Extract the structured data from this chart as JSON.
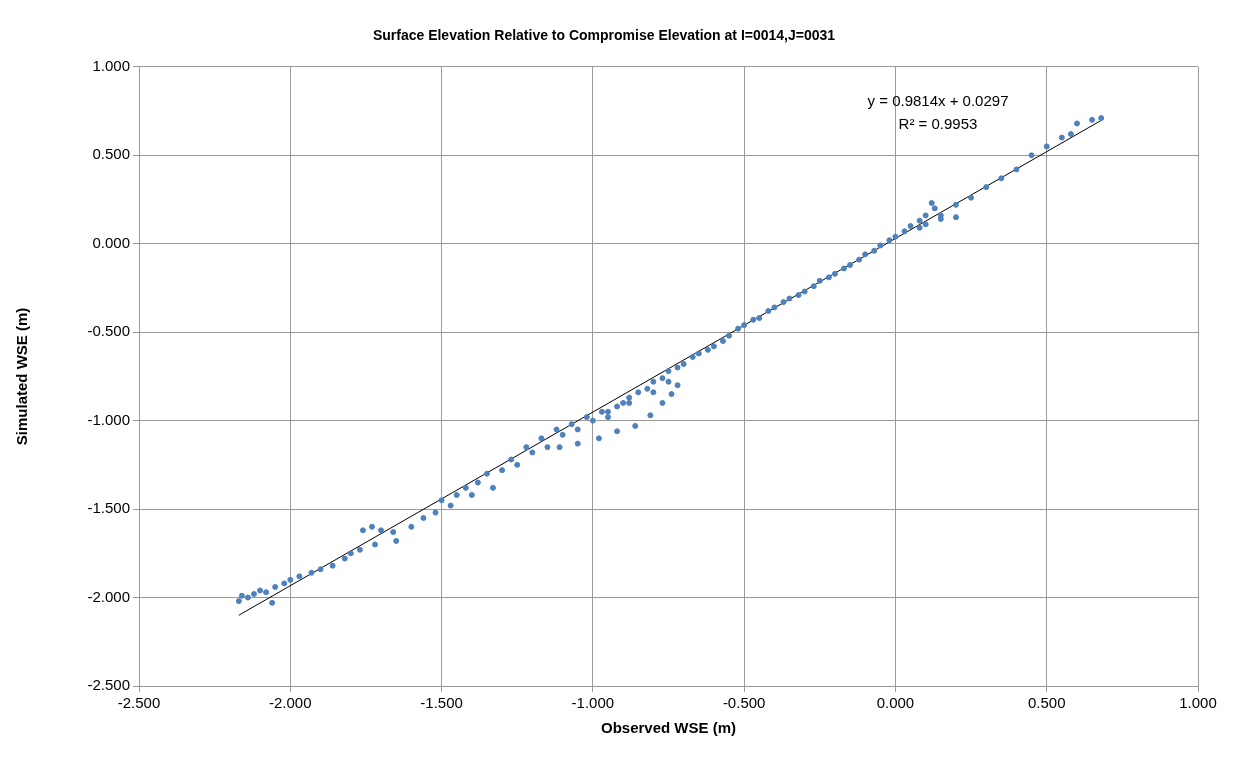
{
  "chart_data": {
    "type": "scatter",
    "title": "Surface Elevation Relative to Compromise Elevation at I=0014,J=0031",
    "xlabel": "Observed WSE (m)",
    "ylabel": "Simulated WSE (m)",
    "xlim": [
      -2.5,
      1.0
    ],
    "ylim": [
      -2.5,
      1.0
    ],
    "xticks": [
      {
        "value": -2.5,
        "label": "-2.500"
      },
      {
        "value": -2.0,
        "label": "-2.000"
      },
      {
        "value": -1.5,
        "label": "-1.500"
      },
      {
        "value": -1.0,
        "label": "-1.000"
      },
      {
        "value": -0.5,
        "label": "-0.500"
      },
      {
        "value": 0,
        "label": "0.000"
      },
      {
        "value": 0.5,
        "label": "0.500"
      },
      {
        "value": 1.0,
        "label": "1.000"
      }
    ],
    "yticks": [
      {
        "value": -2.5,
        "label": "-2.500"
      },
      {
        "value": -2.0,
        "label": "-2.000"
      },
      {
        "value": -1.5,
        "label": "-1.500"
      },
      {
        "value": -1.0,
        "label": "-1.000"
      },
      {
        "value": -0.5,
        "label": "-0.500"
      },
      {
        "value": 0,
        "label": "0.000"
      },
      {
        "value": 0.5,
        "label": "0.500"
      },
      {
        "value": 1.0,
        "label": "1.000"
      }
    ],
    "grid": true,
    "marker": "circle",
    "annotations": [
      "y = 0.9814x + 0.0297",
      "R² = 0.9953"
    ],
    "series": [
      {
        "color": "#4f81bd",
        "x": [
          -2.17,
          -2.16,
          -2.14,
          -2.12,
          -2.1,
          -2.08,
          -2.06,
          -2.05,
          -2.02,
          -2.0,
          -1.97,
          -1.93,
          -1.9,
          -1.86,
          -1.82,
          -1.8,
          -1.77,
          -1.76,
          -1.73,
          -1.7,
          -1.66,
          -1.72,
          -1.65,
          -1.6,
          -1.56,
          -1.52,
          -1.5,
          -1.47,
          -1.45,
          -1.42,
          -1.4,
          -1.38,
          -1.35,
          -1.33,
          -1.3,
          -1.27,
          -1.25,
          -1.22,
          -1.2,
          -1.17,
          -1.15,
          -1.12,
          -1.1,
          -1.07,
          -1.05,
          -1.02,
          -1.0,
          -0.97,
          -0.95,
          -0.92,
          -0.9,
          -0.88,
          -0.85,
          -0.82,
          -0.8,
          -0.77,
          -0.75,
          -0.72,
          -0.7,
          -0.67,
          -0.65,
          -0.62,
          -0.6,
          -0.57,
          -0.55,
          -0.52,
          -0.5,
          -0.47,
          -0.45,
          -0.42,
          -0.4,
          -0.37,
          -0.35,
          -0.32,
          -0.3,
          -0.27,
          -0.25,
          -0.22,
          -0.2,
          -0.17,
          -0.15,
          -0.12,
          -0.1,
          -0.07,
          -0.05,
          -0.02,
          0.0,
          0.03,
          0.05,
          0.08,
          0.1,
          0.13,
          0.12,
          0.08,
          0.15,
          0.2,
          0.2,
          0.25,
          0.3,
          0.35,
          0.4,
          0.45,
          0.5,
          0.55,
          0.58,
          0.6,
          0.65,
          0.68,
          -0.72,
          -0.74,
          -0.77,
          -0.81,
          -0.86,
          -0.92,
          -0.98,
          -1.05,
          -1.11,
          -0.75,
          -0.8,
          -0.88,
          -0.95,
          0.1,
          0.15
        ],
        "values": [
          -2.02,
          -1.99,
          -2.0,
          -1.98,
          -1.96,
          -1.97,
          -2.03,
          -1.94,
          -1.92,
          -1.9,
          -1.88,
          -1.86,
          -1.84,
          -1.82,
          -1.78,
          -1.75,
          -1.73,
          -1.62,
          -1.6,
          -1.62,
          -1.63,
          -1.7,
          -1.68,
          -1.6,
          -1.55,
          -1.52,
          -1.45,
          -1.48,
          -1.42,
          -1.38,
          -1.42,
          -1.35,
          -1.3,
          -1.38,
          -1.28,
          -1.22,
          -1.25,
          -1.15,
          -1.18,
          -1.1,
          -1.15,
          -1.05,
          -1.08,
          -1.02,
          -1.05,
          -0.98,
          -1.0,
          -0.95,
          -0.98,
          -0.92,
          -0.9,
          -0.87,
          -0.84,
          -0.82,
          -0.78,
          -0.76,
          -0.72,
          -0.7,
          -0.68,
          -0.64,
          -0.62,
          -0.6,
          -0.58,
          -0.55,
          -0.52,
          -0.48,
          -0.46,
          -0.43,
          -0.42,
          -0.38,
          -0.36,
          -0.33,
          -0.31,
          -0.29,
          -0.27,
          -0.24,
          -0.21,
          -0.19,
          -0.17,
          -0.14,
          -0.12,
          -0.09,
          -0.06,
          -0.04,
          -0.01,
          0.02,
          0.04,
          0.07,
          0.1,
          0.13,
          0.16,
          0.2,
          0.23,
          0.09,
          0.16,
          0.15,
          0.22,
          0.26,
          0.32,
          0.37,
          0.42,
          0.5,
          0.55,
          0.6,
          0.62,
          0.68,
          0.7,
          0.71,
          -0.8,
          -0.85,
          -0.9,
          -0.97,
          -1.03,
          -1.06,
          -1.1,
          -1.13,
          -1.15,
          -0.78,
          -0.84,
          -0.9,
          -0.95,
          0.11,
          0.14
        ]
      },
      {
        "type": "line",
        "marker": "none",
        "color": "#000000",
        "x": [
          -2.17,
          0.68
        ],
        "values": [
          -2.1,
          0.697
        ]
      }
    ]
  }
}
